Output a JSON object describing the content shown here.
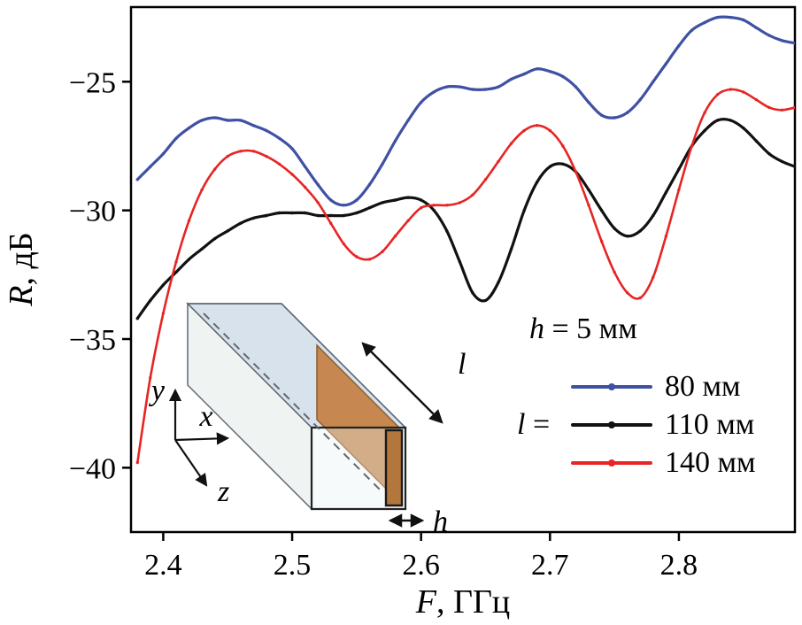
{
  "figure": {
    "y_axis_title": {
      "var": "R",
      "unit": ", дБ"
    },
    "x_axis_title": {
      "var": "F",
      "unit": ", ГГц"
    }
  },
  "legend": {
    "h_note": {
      "var": "h",
      "rest": " = 5 мм"
    },
    "l_prefix": {
      "var": "l",
      "rest": " ="
    }
  },
  "inset": {
    "labels": {
      "l": "l",
      "h": "h",
      "x": "x",
      "y": "y",
      "z": "z"
    }
  },
  "chart_data": {
    "type": "line",
    "title": "",
    "xlabel": "F, ГГц",
    "ylabel": "R, дБ",
    "xlim": [
      2.375,
      2.89
    ],
    "ylim": [
      -42.5,
      -22.1
    ],
    "grid": false,
    "legend_position": "inside-right",
    "xticks": [
      {
        "v": 2.4,
        "label": "2.4"
      },
      {
        "v": 2.5,
        "label": "2.5"
      },
      {
        "v": 2.6,
        "label": "2.6"
      },
      {
        "v": 2.7,
        "label": "2.7"
      },
      {
        "v": 2.8,
        "label": "2.8"
      }
    ],
    "yticks": [
      {
        "v": -25,
        "label": "−25"
      },
      {
        "v": -30,
        "label": "−30"
      },
      {
        "v": -35,
        "label": "−35"
      },
      {
        "v": -40,
        "label": "−40"
      }
    ],
    "x": [
      2.38,
      2.39,
      2.4,
      2.41,
      2.42,
      2.43,
      2.44,
      2.45,
      2.46,
      2.47,
      2.48,
      2.49,
      2.5,
      2.51,
      2.52,
      2.53,
      2.54,
      2.55,
      2.56,
      2.57,
      2.58,
      2.59,
      2.6,
      2.61,
      2.62,
      2.63,
      2.64,
      2.65,
      2.66,
      2.67,
      2.68,
      2.69,
      2.7,
      2.71,
      2.72,
      2.73,
      2.74,
      2.75,
      2.76,
      2.77,
      2.78,
      2.79,
      2.8,
      2.81,
      2.82,
      2.83,
      2.84,
      2.85,
      2.86,
      2.87,
      2.88,
      2.89
    ],
    "series": [
      {
        "name": "80 мм",
        "color": "#3f51a3",
        "width": 3.2,
        "y": [
          -28.8,
          -28.3,
          -27.8,
          -27.2,
          -26.8,
          -26.5,
          -26.4,
          -26.5,
          -26.5,
          -26.7,
          -26.9,
          -27.2,
          -27.6,
          -28.3,
          -29.0,
          -29.6,
          -29.8,
          -29.6,
          -29.0,
          -28.2,
          -27.3,
          -26.5,
          -25.8,
          -25.4,
          -25.2,
          -25.2,
          -25.3,
          -25.3,
          -25.2,
          -24.9,
          -24.7,
          -24.5,
          -24.6,
          -24.8,
          -25.2,
          -25.8,
          -26.3,
          -26.4,
          -26.2,
          -25.7,
          -25.0,
          -24.3,
          -23.6,
          -23.0,
          -22.7,
          -22.5,
          -22.5,
          -22.6,
          -22.9,
          -23.2,
          -23.4,
          -23.5
        ]
      },
      {
        "name": "110 мм",
        "color": "#111111",
        "width": 3.2,
        "y": [
          -34.2,
          -33.5,
          -32.9,
          -32.4,
          -31.9,
          -31.5,
          -31.1,
          -30.8,
          -30.5,
          -30.3,
          -30.2,
          -30.1,
          -30.1,
          -30.1,
          -30.2,
          -30.2,
          -30.2,
          -30.1,
          -29.9,
          -29.7,
          -29.6,
          -29.5,
          -29.6,
          -30.0,
          -30.8,
          -32.0,
          -33.2,
          -33.5,
          -32.8,
          -31.5,
          -30.0,
          -28.9,
          -28.3,
          -28.2,
          -28.5,
          -29.2,
          -30.0,
          -30.7,
          -31.0,
          -30.8,
          -30.2,
          -29.3,
          -28.4,
          -27.5,
          -26.9,
          -26.5,
          -26.5,
          -26.8,
          -27.3,
          -27.8,
          -28.1,
          -28.3
        ]
      },
      {
        "name": "140 мм",
        "color": "#e62524",
        "width": 2.6,
        "y": [
          -39.8,
          -36.5,
          -34.0,
          -32.0,
          -30.4,
          -29.2,
          -28.4,
          -27.9,
          -27.7,
          -27.7,
          -27.9,
          -28.2,
          -28.6,
          -29.1,
          -29.7,
          -30.5,
          -31.3,
          -31.8,
          -31.9,
          -31.6,
          -31.0,
          -30.4,
          -29.9,
          -29.8,
          -29.8,
          -29.7,
          -29.4,
          -28.8,
          -28.1,
          -27.4,
          -26.9,
          -26.7,
          -26.9,
          -27.5,
          -28.5,
          -29.8,
          -31.2,
          -32.4,
          -33.2,
          -33.4,
          -32.6,
          -31.0,
          -29.2,
          -27.5,
          -26.2,
          -25.5,
          -25.3,
          -25.4,
          -25.7,
          -26.0,
          -26.1,
          -26.0
        ]
      }
    ]
  }
}
